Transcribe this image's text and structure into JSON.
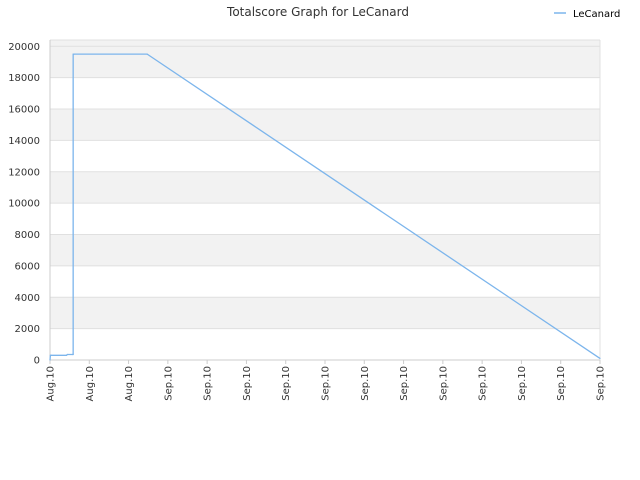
{
  "chart_data": {
    "type": "line",
    "title": "Totalscore Graph for LeCanard",
    "xlabel": "",
    "ylabel": "",
    "ylim": [
      0,
      20400
    ],
    "grid": true,
    "legend_position": "top-right",
    "y_ticks": [
      0,
      2000,
      4000,
      6000,
      8000,
      10000,
      12000,
      14000,
      16000,
      18000,
      20000
    ],
    "x_tick_labels": [
      "Aug.10",
      "Aug.10",
      "Aug.10",
      "Sep.10",
      "Sep.10",
      "Sep.10",
      "Sep.10",
      "Sep.10",
      "Sep.10",
      "Sep.10",
      "Sep.10",
      "Sep.10",
      "Sep.10",
      "Sep.10",
      "Sep.10"
    ],
    "x": [
      0,
      0.1,
      0.4,
      4,
      4.2,
      5.4,
      5.6,
      5.6,
      5.8,
      23.5,
      133
    ],
    "series": [
      {
        "name": "LeCanard",
        "color": "#7cb5ec",
        "values": [
          0,
          300,
          300,
          300,
          350,
          350,
          350,
          19500,
          19500,
          19500,
          100
        ]
      }
    ]
  }
}
